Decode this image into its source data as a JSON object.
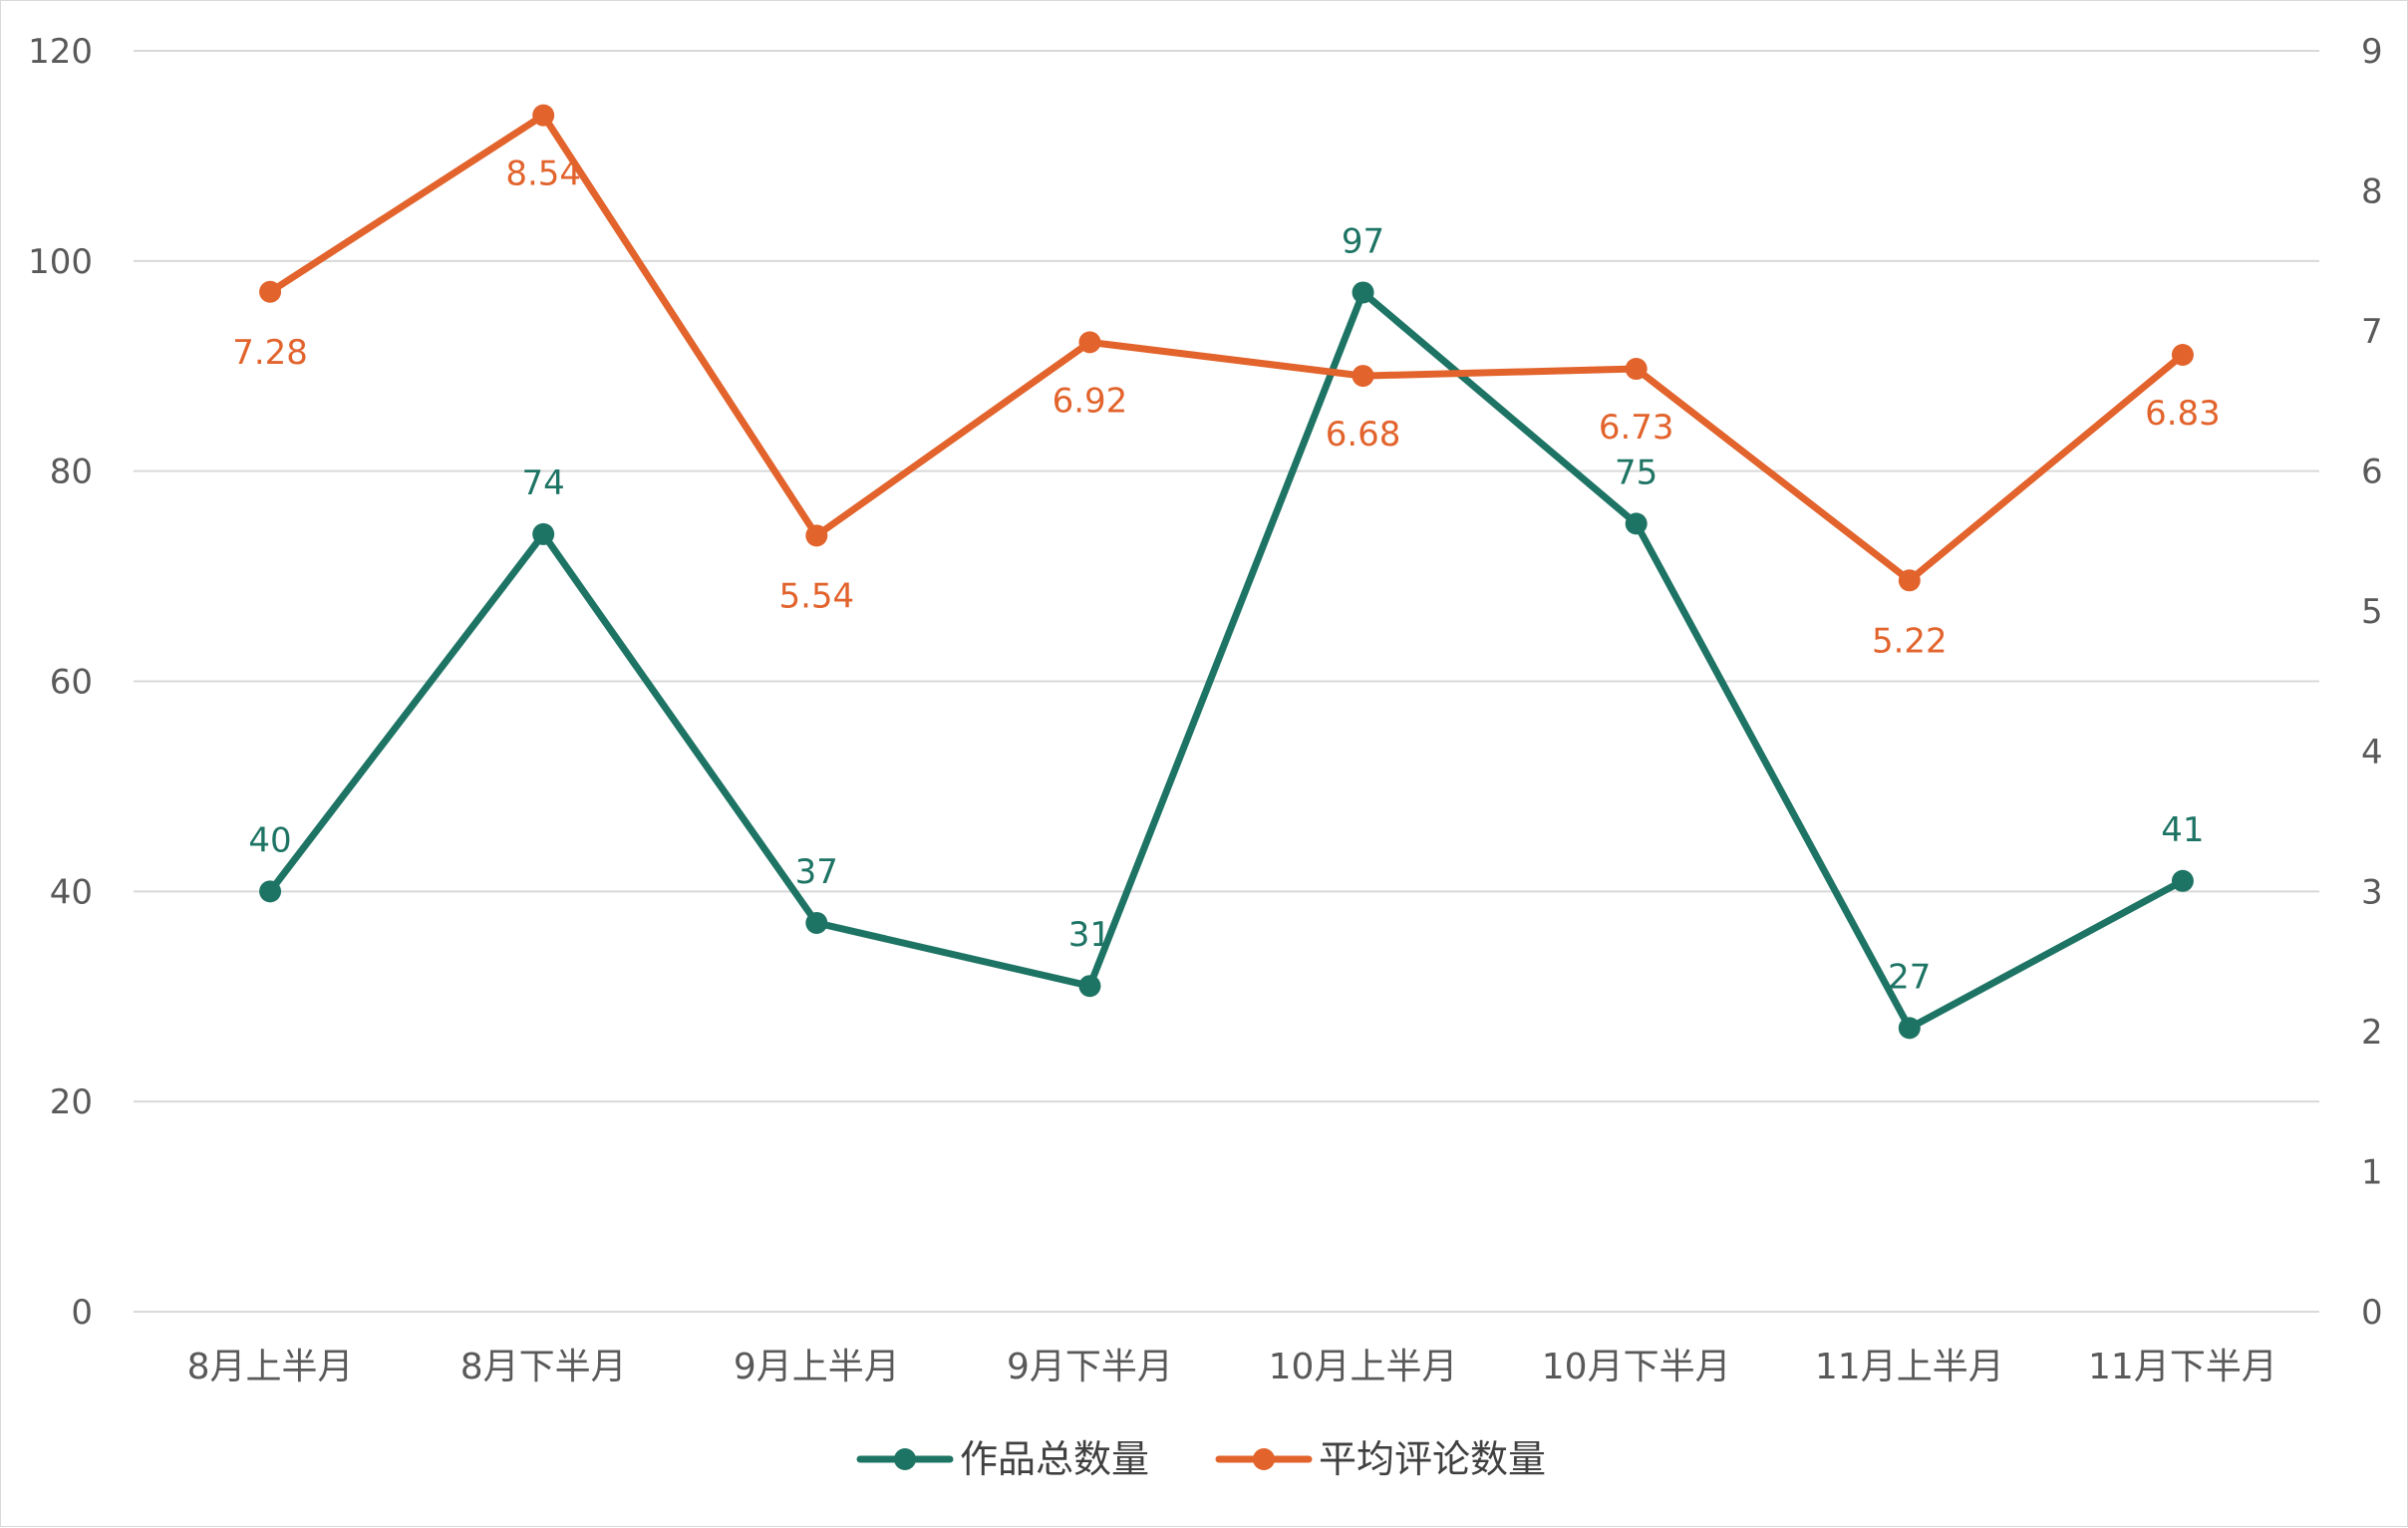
{
  "chart_data": {
    "type": "line",
    "categories": [
      "8月上半月",
      "8月下半月",
      "9月上半月",
      "9月下半月",
      "10月上半月",
      "10月下半月",
      "11月上半月",
      "11月下半月"
    ],
    "series": [
      {
        "name": "作品总数量",
        "axis": "left",
        "values": [
          40,
          74,
          37,
          31,
          97,
          75,
          27,
          41
        ],
        "color": "#1E7464"
      },
      {
        "name": "平均评论数量",
        "axis": "right",
        "values": [
          7.28,
          8.54,
          5.54,
          6.92,
          6.68,
          6.73,
          5.22,
          6.83
        ],
        "color": "#E2632C"
      }
    ],
    "y_left": {
      "min": 0,
      "max": 120,
      "step": 20,
      "ticks": [
        "0",
        "20",
        "40",
        "60",
        "80",
        "100",
        "120"
      ]
    },
    "y_right": {
      "min": 0,
      "max": 9,
      "step": 1,
      "ticks": [
        "0",
        "1",
        "2",
        "3",
        "4",
        "5",
        "6",
        "7",
        "8",
        "9"
      ]
    },
    "data_labels": {
      "作品总数量": [
        "40",
        "74",
        "37",
        "31",
        "97",
        "75",
        "27",
        "41"
      ],
      "平均评论数量": [
        "7.28",
        "8.54",
        "5.54",
        "6.92",
        "6.68",
        "6.73",
        "5.22",
        "6.83"
      ]
    },
    "grid": true,
    "legend_position": "bottom",
    "title": "",
    "xlabel": "",
    "ylabel": ""
  }
}
